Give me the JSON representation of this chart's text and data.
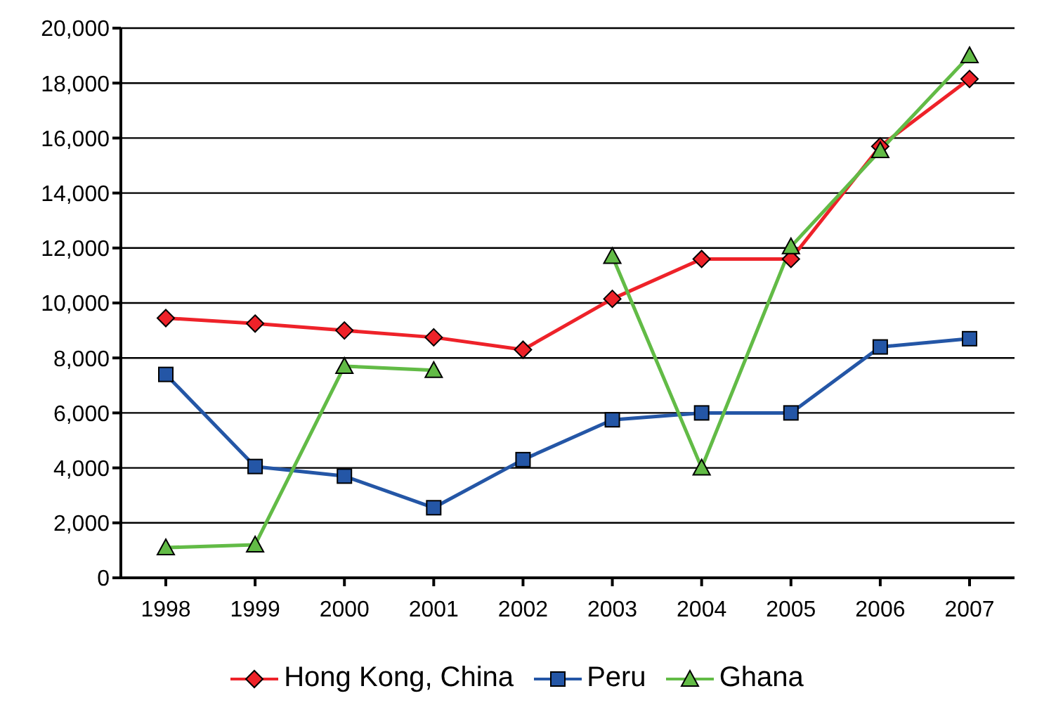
{
  "chart_data": {
    "type": "line",
    "categories": [
      "1998",
      "1999",
      "2000",
      "2001",
      "2002",
      "2003",
      "2004",
      "2005",
      "2006",
      "2007"
    ],
    "series": [
      {
        "name": "Hong Kong, China",
        "color": "#ee2229",
        "marker": "diamond",
        "values": [
          9450,
          9250,
          9000,
          8750,
          8300,
          10150,
          11600,
          11600,
          15700,
          18150
        ]
      },
      {
        "name": "Peru",
        "color": "#2456a6",
        "marker": "square",
        "values": [
          7400,
          4050,
          3700,
          2550,
          4300,
          5750,
          6000,
          6000,
          8400,
          8700
        ]
      },
      {
        "name": "Ghana",
        "color": "#62bb46",
        "marker": "triangle",
        "values": [
          1100,
          1200,
          7700,
          7550,
          null,
          11700,
          4000,
          12050,
          15550,
          19000
        ]
      }
    ],
    "ylim": [
      0,
      20000
    ],
    "yticks": [
      0,
      {
        "value": 2000,
        "label": "2,000"
      },
      {
        "value": 4000,
        "label": "4,000"
      },
      {
        "value": 6000,
        "label": "6,000"
      },
      {
        "value": 8000,
        "label": "8,000"
      },
      {
        "value": 10000,
        "label": "10,000"
      },
      {
        "value": 12000,
        "label": "12,000"
      },
      {
        "value": 14000,
        "label": "14,000"
      },
      {
        "value": 16000,
        "label": "16,000"
      },
      {
        "value": 18000,
        "label": "18,000"
      },
      {
        "value": 20000,
        "label": "20,000"
      }
    ],
    "grid": "y",
    "legend": "bottom"
  }
}
